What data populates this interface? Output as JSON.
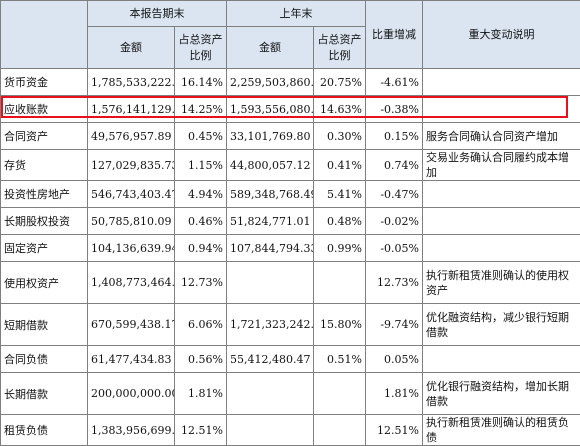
{
  "header": {
    "period_end": "本报告期末",
    "prior_year_end": "上年末",
    "amount": "金额",
    "pct_total_assets_l1": "占总资产",
    "pct_total_assets_l2": "比例",
    "change_ratio": "比重增减",
    "explanation": "重大变动说明"
  },
  "rows": [
    {
      "item": "货币资金",
      "cur_amount": "1,785,533,222.44",
      "cur_pct": "16.14%",
      "prev_amount": "2,259,503,860.60",
      "prev_pct": "20.75%",
      "change": "-4.61%",
      "note": ""
    },
    {
      "item": "应收账款",
      "cur_amount": "1,576,141,129.58",
      "cur_pct": "14.25%",
      "prev_amount": "1,593,556,080.05",
      "prev_pct": "14.63%",
      "change": "-0.38%",
      "note": ""
    },
    {
      "item": "合同资产",
      "cur_amount": "49,576,957.89",
      "cur_pct": "0.45%",
      "prev_amount": "33,101,769.80",
      "prev_pct": "0.30%",
      "change": "0.15%",
      "note": "服务合同确认合同资产增加"
    },
    {
      "item": "存货",
      "cur_amount": "127,029,835.73",
      "cur_pct": "1.15%",
      "prev_amount": "44,800,057.12",
      "prev_pct": "0.41%",
      "change": "0.74%",
      "note": "交易业务确认合同履约成本增加"
    },
    {
      "item": "投资性房地产",
      "cur_amount": "546,743,403.47",
      "cur_pct": "4.94%",
      "prev_amount": "589,348,768.49",
      "prev_pct": "5.41%",
      "change": "-0.47%",
      "note": ""
    },
    {
      "item": "长期股权投资",
      "cur_amount": "50,785,810.09",
      "cur_pct": "0.46%",
      "prev_amount": "51,824,771.01",
      "prev_pct": "0.48%",
      "change": "-0.02%",
      "note": ""
    },
    {
      "item": "固定资产",
      "cur_amount": "104,136,639.94",
      "cur_pct": "0.94%",
      "prev_amount": "107,844,794.33",
      "prev_pct": "0.99%",
      "change": "-0.05%",
      "note": ""
    },
    {
      "item": "使用权资产",
      "cur_amount": "1,408,773,464.46",
      "cur_pct": "12.73%",
      "prev_amount": "",
      "prev_pct": "",
      "change": "12.73%",
      "note": "执行新租赁准则确认的使用权资产"
    },
    {
      "item": "短期借款",
      "cur_amount": "670,599,438.17",
      "cur_pct": "6.06%",
      "prev_amount": "1,721,323,242.35",
      "prev_pct": "15.80%",
      "change": "-9.74%",
      "note": "优化融资结构，减少银行短期借款"
    },
    {
      "item": "合同负债",
      "cur_amount": "61,477,434.83",
      "cur_pct": "0.56%",
      "prev_amount": "55,412,480.47",
      "prev_pct": "0.51%",
      "change": "0.05%",
      "note": ""
    },
    {
      "item": "长期借款",
      "cur_amount": "200,000,000.00",
      "cur_pct": "1.81%",
      "prev_amount": "",
      "prev_pct": "",
      "change": "1.81%",
      "note": "优化银行融资结构，增加长期借款"
    },
    {
      "item": "租赁负债",
      "cur_amount": "1,383,956,699.80",
      "cur_pct": "12.51%",
      "prev_amount": "",
      "prev_pct": "",
      "change": "12.51%",
      "note": "执行新租赁准则确认的租赁负债"
    }
  ],
  "colors": {
    "header_bg": "#dbe5f1",
    "highlight_border": "#e8101b",
    "grid": "#7f7f7f"
  }
}
